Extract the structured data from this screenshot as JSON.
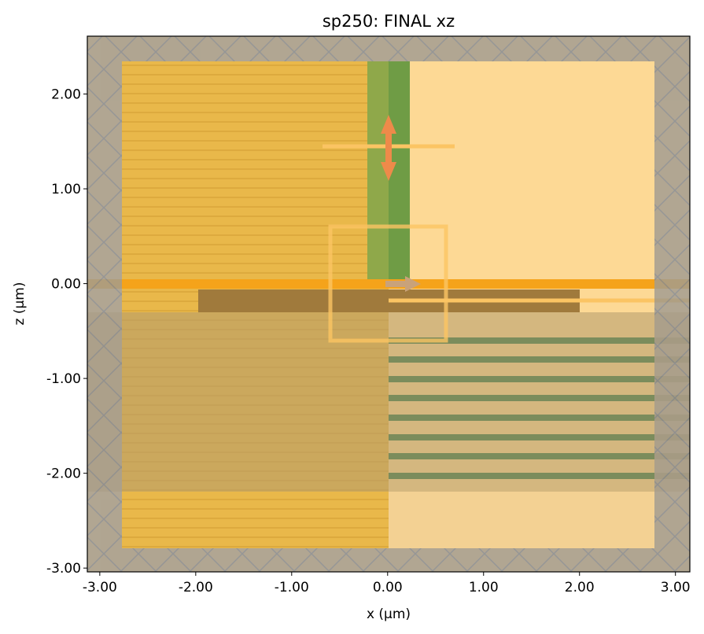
{
  "chart_data": {
    "type": "structure",
    "title": "sp250: FINAL xz",
    "x_label": "x (µm)",
    "y_label": "z (µm)",
    "xlim": [
      -3.13,
      3.15
    ],
    "ylim": [
      -3.04,
      2.61
    ],
    "xticks": [
      {
        "value": -3,
        "label": "-3.00"
      },
      {
        "value": -2,
        "label": "-2.00"
      },
      {
        "value": -1,
        "label": "-1.00"
      },
      {
        "value": 0,
        "label": "0.00"
      },
      {
        "value": 1,
        "label": "1.00"
      },
      {
        "value": 2,
        "label": "2.00"
      },
      {
        "value": 3,
        "label": "3.00"
      }
    ],
    "yticks": [
      {
        "value": -3,
        "label": "-3.00"
      },
      {
        "value": -2,
        "label": "-2.00"
      },
      {
        "value": -1,
        "label": "-1.00"
      },
      {
        "value": 0,
        "label": "0.00"
      },
      {
        "value": 1,
        "label": "1.00"
      },
      {
        "value": 2,
        "label": "2.00"
      }
    ]
  }
}
